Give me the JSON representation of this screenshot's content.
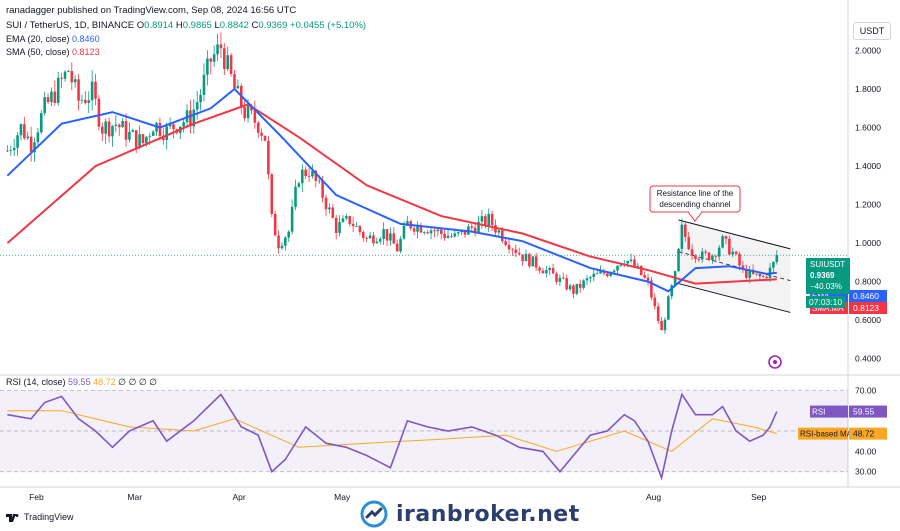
{
  "header": {
    "title": "ranadagger published on TradingView.com, Sep 08, 2024 16:56 UTC",
    "symbol": "SUI / TetherUS, 1D, BINANCE",
    "o_label": "O",
    "o": "0.8914",
    "h_label": "H",
    "h": "0.9865",
    "l_label": "L",
    "l": "0.8842",
    "c_label": "C",
    "c": "0.9369",
    "change": "+0.0455 (+5.10%)",
    "ema_label": "EMA (20, close)",
    "ema_value": "0.8460",
    "sma_label": "SMA (50, close)",
    "sma_value": "0.8123"
  },
  "currency": "USDT",
  "price_tag": {
    "symbol": "SUIUSDT",
    "price": "0.9369",
    "change": "−40.03%",
    "timer": "07:03:10"
  },
  "ema_tag": {
    "label": "EMA",
    "value": "0.8460"
  },
  "sma_tag": {
    "label": "SMA:MA",
    "value": "0.8123"
  },
  "rsi_legend": {
    "label": "RSI (14, close)",
    "rsi": "59.55",
    "ma": "48.72",
    "rest": "∅ ∅ ∅ ∅"
  },
  "rsi_tag": {
    "label": "RSI",
    "value": "59.55"
  },
  "rsi_ma_tag": {
    "label": "RSI-based MA",
    "value": "48.72"
  },
  "annotation": "Resistance line of the descending channel",
  "watermark": "iranbroker.net",
  "tv_logo": "TradingView",
  "colors": {
    "up": "#089981",
    "down": "#f23645",
    "ema": "#2962ff",
    "sma": "#f23645",
    "rsi": "#7e57c2",
    "rsi_ma": "#f9a825"
  },
  "chart_data": [
    {
      "type": "candlestick",
      "title": "SUI / TetherUS, 1D, BINANCE",
      "x_ticks": [
        "Feb",
        "Mar",
        "Apr",
        "May",
        "Aug",
        "Sep"
      ],
      "y_ticks": [
        "2.0000",
        "1.8000",
        "1.6000",
        "1.4000",
        "1.2000",
        "1.0000",
        "0.8000",
        "0.6000",
        "0.4000"
      ],
      "ylim": [
        0.31,
        2.2
      ],
      "close_series": [
        [
          "2024-01-25",
          1.48
        ],
        [
          "2024-01-29",
          1.6
        ],
        [
          "2024-02-01",
          1.52
        ],
        [
          "2024-02-05",
          1.7
        ],
        [
          "2024-02-08",
          1.78
        ],
        [
          "2024-02-12",
          1.9
        ],
        [
          "2024-02-15",
          1.74
        ],
        [
          "2024-02-19",
          1.78
        ],
        [
          "2024-02-22",
          1.6
        ],
        [
          "2024-02-26",
          1.62
        ],
        [
          "2024-03-01",
          1.56
        ],
        [
          "2024-03-05",
          1.52
        ],
        [
          "2024-03-08",
          1.62
        ],
        [
          "2024-03-12",
          1.58
        ],
        [
          "2024-03-15",
          1.62
        ],
        [
          "2024-03-19",
          1.65
        ],
        [
          "2024-03-22",
          1.78
        ],
        [
          "2024-03-25",
          1.95
        ],
        [
          "2024-03-28",
          2.02
        ],
        [
          "2024-04-01",
          1.8
        ],
        [
          "2024-04-04",
          1.68
        ],
        [
          "2024-04-08",
          1.62
        ],
        [
          "2024-04-10",
          1.55
        ],
        [
          "2024-04-12",
          1.12
        ],
        [
          "2024-04-14",
          1.0
        ],
        [
          "2024-04-17",
          1.06
        ],
        [
          "2024-04-20",
          1.35
        ],
        [
          "2024-04-23",
          1.38
        ],
        [
          "2024-04-27",
          1.25
        ],
        [
          "2024-05-01",
          1.08
        ],
        [
          "2024-05-05",
          1.12
        ],
        [
          "2024-05-10",
          1.02
        ],
        [
          "2024-05-15",
          1.06
        ],
        [
          "2024-05-19",
          0.97
        ],
        [
          "2024-05-22",
          1.1
        ],
        [
          "2024-05-28",
          1.08
        ],
        [
          "2024-06-01",
          1.05
        ],
        [
          "2024-06-05",
          1.03
        ],
        [
          "2024-06-10",
          1.08
        ],
        [
          "2024-06-15",
          1.12
        ],
        [
          "2024-06-20",
          1.02
        ],
        [
          "2024-06-25",
          0.93
        ],
        [
          "2024-06-30",
          0.88
        ],
        [
          "2024-07-05",
          0.82
        ],
        [
          "2024-07-10",
          0.75
        ],
        [
          "2024-07-15",
          0.82
        ],
        [
          "2024-07-20",
          0.85
        ],
        [
          "2024-07-25",
          0.92
        ],
        [
          "2024-07-28",
          0.88
        ],
        [
          "2024-08-01",
          0.79
        ],
        [
          "2024-08-03",
          0.66
        ],
        [
          "2024-08-05",
          0.54
        ],
        [
          "2024-08-07",
          0.7
        ],
        [
          "2024-08-09",
          0.83
        ],
        [
          "2024-08-11",
          1.07
        ],
        [
          "2024-08-14",
          0.96
        ],
        [
          "2024-08-17",
          0.93
        ],
        [
          "2024-08-20",
          0.94
        ],
        [
          "2024-08-23",
          1.01
        ],
        [
          "2024-08-26",
          0.95
        ],
        [
          "2024-08-29",
          0.85
        ],
        [
          "2024-09-01",
          0.83
        ],
        [
          "2024-09-04",
          0.82
        ],
        [
          "2024-09-06",
          0.86
        ],
        [
          "2024-09-07",
          0.89
        ],
        [
          "2024-09-08",
          0.9369
        ]
      ],
      "ema_20": [
        [
          "2024-01-25",
          1.35
        ],
        [
          "2024-02-10",
          1.62
        ],
        [
          "2024-02-25",
          1.68
        ],
        [
          "2024-03-10",
          1.6
        ],
        [
          "2024-03-25",
          1.7
        ],
        [
          "2024-04-01",
          1.8
        ],
        [
          "2024-04-15",
          1.55
        ],
        [
          "2024-05-01",
          1.25
        ],
        [
          "2024-05-20",
          1.1
        ],
        [
          "2024-06-10",
          1.06
        ],
        [
          "2024-06-25",
          1.01
        ],
        [
          "2024-07-15",
          0.87
        ],
        [
          "2024-08-01",
          0.8
        ],
        [
          "2024-08-07",
          0.75
        ],
        [
          "2024-08-15",
          0.87
        ],
        [
          "2024-08-25",
          0.88
        ],
        [
          "2024-09-05",
          0.84
        ],
        [
          "2024-09-08",
          0.846
        ]
      ],
      "sma_50": [
        [
          "2024-01-25",
          1.0
        ],
        [
          "2024-02-20",
          1.4
        ],
        [
          "2024-03-20",
          1.62
        ],
        [
          "2024-04-05",
          1.72
        ],
        [
          "2024-04-20",
          1.55
        ],
        [
          "2024-05-10",
          1.3
        ],
        [
          "2024-06-01",
          1.14
        ],
        [
          "2024-06-25",
          1.05
        ],
        [
          "2024-07-15",
          0.93
        ],
        [
          "2024-08-01",
          0.86
        ],
        [
          "2024-08-15",
          0.79
        ],
        [
          "2024-09-08",
          0.8123
        ]
      ],
      "channel_upper": [
        [
          "2024-08-10",
          1.12
        ],
        [
          "2024-09-12",
          0.97
        ]
      ],
      "channel_lower": [
        [
          "2024-08-10",
          0.79
        ],
        [
          "2024-09-12",
          0.64
        ]
      ],
      "channel_mid": [
        [
          "2024-08-10",
          0.955
        ],
        [
          "2024-09-12",
          0.805
        ]
      ],
      "last_price": 0.9369
    },
    {
      "type": "line",
      "title": "RSI (14, close)",
      "y_ticks": [
        "70.00",
        "40.00",
        "30.00"
      ],
      "ylim": [
        23,
        78
      ],
      "band": [
        30,
        70
      ],
      "series": [
        {
          "name": "RSI",
          "values": [
            [
              "2024-01-25",
              58
            ],
            [
              "2024-02-01",
              56
            ],
            [
              "2024-02-05",
              64
            ],
            [
              "2024-02-10",
              67
            ],
            [
              "2024-02-15",
              56
            ],
            [
              "2024-02-20",
              50
            ],
            [
              "2024-02-25",
              42
            ],
            [
              "2024-03-01",
              50
            ],
            [
              "2024-03-08",
              55
            ],
            [
              "2024-03-12",
              45
            ],
            [
              "2024-03-20",
              55
            ],
            [
              "2024-03-28",
              68
            ],
            [
              "2024-04-03",
              52
            ],
            [
              "2024-04-08",
              48
            ],
            [
              "2024-04-12",
              30
            ],
            [
              "2024-04-16",
              36
            ],
            [
              "2024-04-22",
              52
            ],
            [
              "2024-04-28",
              44
            ],
            [
              "2024-05-04",
              42
            ],
            [
              "2024-05-10",
              38
            ],
            [
              "2024-05-17",
              32
            ],
            [
              "2024-05-22",
              55
            ],
            [
              "2024-05-28",
              52
            ],
            [
              "2024-06-03",
              50
            ],
            [
              "2024-06-10",
              52
            ],
            [
              "2024-06-17",
              48
            ],
            [
              "2024-06-24",
              42
            ],
            [
              "2024-07-01",
              40
            ],
            [
              "2024-07-06",
              30
            ],
            [
              "2024-07-10",
              38
            ],
            [
              "2024-07-15",
              48
            ],
            [
              "2024-07-20",
              50
            ],
            [
              "2024-07-25",
              58
            ],
            [
              "2024-07-28",
              55
            ],
            [
              "2024-08-01",
              45
            ],
            [
              "2024-08-05",
              27
            ],
            [
              "2024-08-08",
              50
            ],
            [
              "2024-08-11",
              68
            ],
            [
              "2024-08-15",
              58
            ],
            [
              "2024-08-20",
              58
            ],
            [
              "2024-08-23",
              62
            ],
            [
              "2024-08-27",
              50
            ],
            [
              "2024-08-31",
              45
            ],
            [
              "2024-09-04",
              48
            ],
            [
              "2024-09-06",
              52
            ],
            [
              "2024-09-08",
              59.55
            ]
          ]
        },
        {
          "name": "RSI-based MA",
          "values": [
            [
              "2024-01-25",
              60
            ],
            [
              "2024-02-10",
              60
            ],
            [
              "2024-03-01",
              52
            ],
            [
              "2024-03-20",
              50
            ],
            [
              "2024-04-01",
              56
            ],
            [
              "2024-04-20",
              42
            ],
            [
              "2024-05-10",
              44
            ],
            [
              "2024-06-01",
              46
            ],
            [
              "2024-06-20",
              48
            ],
            [
              "2024-07-05",
              40
            ],
            [
              "2024-07-25",
              50
            ],
            [
              "2024-08-08",
              40
            ],
            [
              "2024-08-20",
              56
            ],
            [
              "2024-09-01",
              52
            ],
            [
              "2024-09-08",
              48.72
            ]
          ]
        }
      ]
    }
  ]
}
